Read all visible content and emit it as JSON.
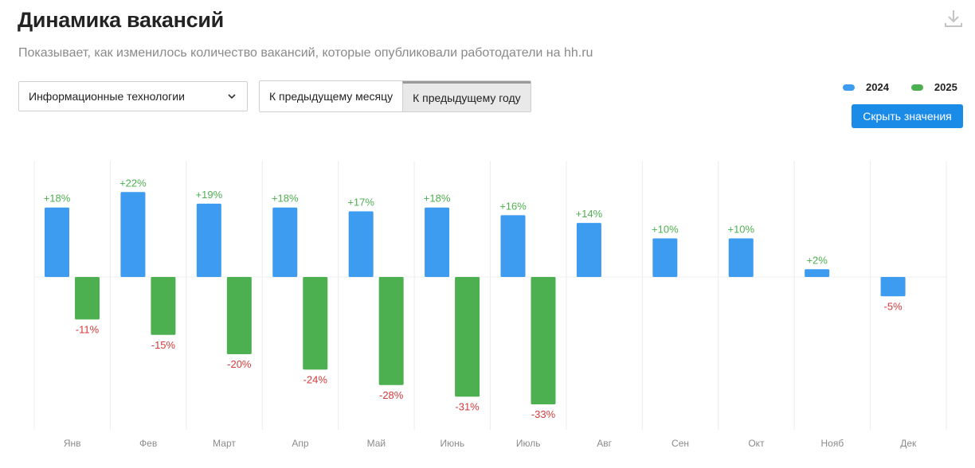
{
  "header": {
    "title": "Динамика вакансий",
    "subtitle": "Показывает, как изменилось количество вакансий, которые опубликовали работодатели на hh.ru"
  },
  "filters": {
    "industry_value": "Информационные технологии",
    "compare_options": [
      "К предыдущему месяцу",
      "К предыдущему году"
    ],
    "compare_selected": "К предыдущему году"
  },
  "legend": {
    "series_1": "2024",
    "series_2": "2025"
  },
  "buttons": {
    "hide_values": "Скрыть значения"
  },
  "colors": {
    "series_2024": "#3d9bf0",
    "series_2025": "#4db050",
    "positive_label": "#4db050",
    "negative_label": "#d63a3a",
    "grid": "#ececec"
  },
  "icons": {
    "download": "download-icon",
    "dropdown": "chevron-down-icon"
  },
  "chart_data": {
    "type": "bar",
    "title": "Динамика вакансий",
    "xlabel": "",
    "ylabel": "",
    "ylim": [
      -40,
      32
    ],
    "categories": [
      "Янв",
      "Фев",
      "Март",
      "Апр",
      "Май",
      "Июнь",
      "Июль",
      "Авг",
      "Сен",
      "Окт",
      "Нояб",
      "Дек"
    ],
    "series": [
      {
        "name": "2024",
        "values": [
          18,
          22,
          19,
          18,
          17,
          18,
          16,
          14,
          10,
          10,
          2,
          -5
        ]
      },
      {
        "name": "2025",
        "values": [
          -11,
          -15,
          -20,
          -24,
          -28,
          -31,
          -33,
          null,
          null,
          null,
          null,
          null
        ]
      }
    ],
    "value_format": "percent_signed",
    "legend_position": "top-right"
  }
}
